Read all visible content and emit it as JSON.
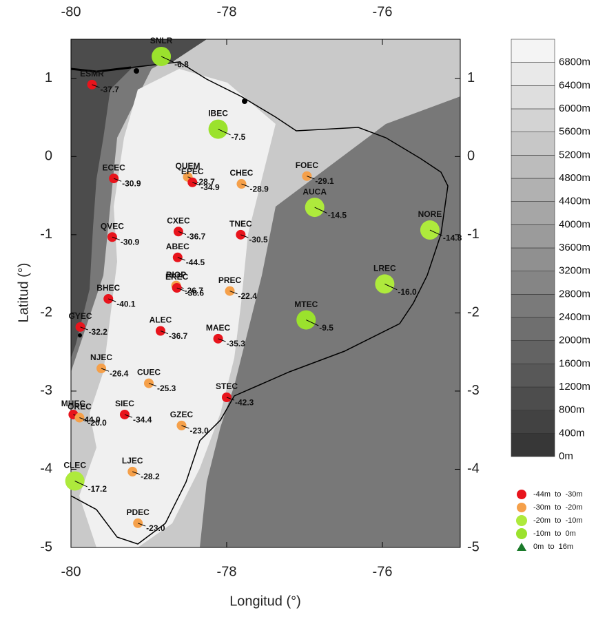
{
  "chart_data": {
    "type": "scatter",
    "xlabel": "Longitud (°)",
    "ylabel": "Latitud (°)",
    "xlim": [
      -80,
      -75
    ],
    "ylim": [
      -5,
      1.5
    ],
    "xticks": [
      -80,
      -78,
      -76
    ],
    "yticks": [
      -5,
      -4,
      -3,
      -2,
      -1,
      0,
      1
    ],
    "stations": [
      {
        "name": "SNLR",
        "lon": -78.84,
        "lat": 1.28,
        "value": -6.8,
        "color": "#9be22d"
      },
      {
        "name": "ESMR",
        "lon": -79.73,
        "lat": 0.92,
        "value": -37.7,
        "color": "#e8141c"
      },
      {
        "name": "IBEC",
        "lon": -78.11,
        "lat": 0.35,
        "value": -7.5,
        "color": "#9be22d"
      },
      {
        "name": "ECEC",
        "lon": -79.45,
        "lat": -0.28,
        "value": -30.9,
        "color": "#e8141c"
      },
      {
        "name": "QUEM",
        "lon": -78.5,
        "lat": -0.26,
        "value": -28.7,
        "color": "#f5a04a"
      },
      {
        "name": "EPEC",
        "lon": -78.44,
        "lat": -0.33,
        "value": -34.9,
        "color": "#e8141c"
      },
      {
        "name": "CHEC",
        "lon": -77.81,
        "lat": -0.35,
        "value": -28.9,
        "color": "#f5a04a"
      },
      {
        "name": "FOEC",
        "lon": -76.97,
        "lat": -0.25,
        "value": -29.1,
        "color": "#f5a04a"
      },
      {
        "name": "AUCA",
        "lon": -76.87,
        "lat": -0.65,
        "value": -14.5,
        "color": "#aeea3c"
      },
      {
        "name": "NORE",
        "lon": -75.39,
        "lat": -0.94,
        "value": -14.8,
        "color": "#aeea3c"
      },
      {
        "name": "CXEC",
        "lon": -78.62,
        "lat": -0.96,
        "value": -36.7,
        "color": "#e8141c"
      },
      {
        "name": "TNEC",
        "lon": -77.82,
        "lat": -1.0,
        "value": -30.5,
        "color": "#e8141c"
      },
      {
        "name": "QVEC",
        "lon": -79.47,
        "lat": -1.03,
        "value": -30.9,
        "color": "#e8141c"
      },
      {
        "name": "ABEC",
        "lon": -78.63,
        "lat": -1.29,
        "value": -44.5,
        "color": "#e8141c"
      },
      {
        "name": "RIOP",
        "lon": -78.65,
        "lat": -1.65,
        "value": -26.7,
        "color": "#f5a04a"
      },
      {
        "name": "EREC",
        "lon": -78.64,
        "lat": -1.68,
        "value": -38.6,
        "color": "#e8141c"
      },
      {
        "name": "PREC",
        "lon": -77.96,
        "lat": -1.72,
        "value": -22.4,
        "color": "#f5a04a"
      },
      {
        "name": "LREC",
        "lon": -75.97,
        "lat": -1.63,
        "value": -16.0,
        "value_label": "-16.0",
        "color": "#aeea3c"
      },
      {
        "name": "BHEC",
        "lon": -79.52,
        "lat": -1.82,
        "value": -40.1,
        "color": "#e8141c"
      },
      {
        "name": "MTEC",
        "lon": -76.98,
        "lat": -2.09,
        "value": -9.5,
        "color": "#9be22d"
      },
      {
        "name": "GYEC",
        "lon": -79.88,
        "lat": -2.18,
        "value": -32.2,
        "color": "#e8141c"
      },
      {
        "name": "ALEC",
        "lon": -78.85,
        "lat": -2.23,
        "value": -36.7,
        "color": "#e8141c"
      },
      {
        "name": "MAEC",
        "lon": -78.11,
        "lat": -2.33,
        "value": -35.3,
        "color": "#e8141c"
      },
      {
        "name": "NJEC",
        "lon": -79.61,
        "lat": -2.71,
        "value": -26.4,
        "color": "#f5a04a"
      },
      {
        "name": "CUEC",
        "lon": -79.0,
        "lat": -2.9,
        "value": -25.3,
        "color": "#f5a04a"
      },
      {
        "name": "STEC",
        "lon": -78.0,
        "lat": -3.08,
        "value": -42.3,
        "color": "#e8141c"
      },
      {
        "name": "MHEC",
        "lon": -79.97,
        "lat": -3.3,
        "value": -44.0,
        "value_label": "-44.0",
        "color": "#e8141c"
      },
      {
        "name": "OREC",
        "lon": -79.89,
        "lat": -3.34,
        "value": -20.0,
        "value_label": "-20.0",
        "color": "#f5a04a"
      },
      {
        "name": "SIEC",
        "lon": -79.31,
        "lat": -3.3,
        "value": -34.4,
        "color": "#e8141c"
      },
      {
        "name": "GZEC",
        "lon": -78.58,
        "lat": -3.44,
        "value": -23.0,
        "value_label": "-23.0",
        "color": "#f5a04a"
      },
      {
        "name": "LJEC",
        "lon": -79.21,
        "lat": -4.03,
        "value": -28.2,
        "color": "#f5a04a"
      },
      {
        "name": "CLEC",
        "lon": -79.95,
        "lat": -4.15,
        "value": -17.2,
        "color": "#aeea3c"
      },
      {
        "name": "PDEC",
        "lon": -79.14,
        "lat": -4.69,
        "value": -23.0,
        "value_label": "-23.0",
        "color": "#f5a04a"
      }
    ],
    "elevation_scale": {
      "lim": [
        0,
        7200
      ],
      "ticks": [
        {
          "value": 0,
          "label": "0m"
        },
        {
          "value": 400,
          "label": "400m"
        },
        {
          "value": 800,
          "label": "800m"
        },
        {
          "value": 1200,
          "label": "1200m"
        },
        {
          "value": 1600,
          "label": "1600m"
        },
        {
          "value": 2000,
          "label": "2000m"
        },
        {
          "value": 2400,
          "label": "2400m"
        },
        {
          "value": 2800,
          "label": "2800m"
        },
        {
          "value": 3200,
          "label": "3200m"
        },
        {
          "value": 3600,
          "label": "3600m"
        },
        {
          "value": 4000,
          "label": "4000m"
        },
        {
          "value": 4400,
          "label": "4400m"
        },
        {
          "value": 4800,
          "label": "4800m"
        },
        {
          "value": 5200,
          "label": "5200m"
        },
        {
          "value": 5600,
          "label": "5600m"
        },
        {
          "value": 6000,
          "label": "6000m"
        },
        {
          "value": 6400,
          "label": "6400m"
        },
        {
          "value": 6800,
          "label": "6800m"
        }
      ]
    },
    "legend": [
      {
        "label": "-44m  to  -30m",
        "color": "#e8141c",
        "marker": "circle"
      },
      {
        "label": "-30m  to  -20m",
        "color": "#f5a04a",
        "marker": "circle"
      },
      {
        "label": "-20m  to  -10m",
        "color": "#aeea3c",
        "marker": "circle"
      },
      {
        "label": "-10m  to  0m",
        "color": "#9be22d",
        "marker": "circle"
      },
      {
        "label": "0m  to  16m",
        "color": "#1a7a2a",
        "marker": "triangle"
      }
    ]
  }
}
